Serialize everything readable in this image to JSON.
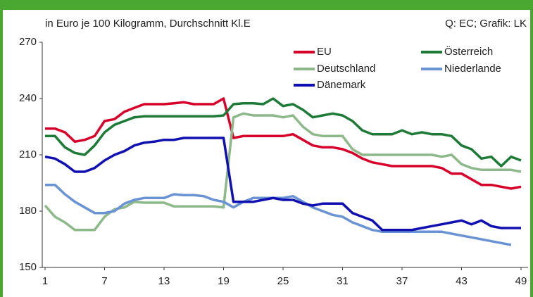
{
  "chart_data": {
    "type": "line",
    "subtitle": "in Euro je 100 Kilogramm, Durchschnitt Kl.E",
    "source": "Q: EC; Grafik: LK",
    "x": [
      1,
      2,
      3,
      4,
      5,
      6,
      7,
      8,
      9,
      10,
      11,
      12,
      13,
      14,
      15,
      16,
      17,
      18,
      19,
      20,
      21,
      22,
      23,
      24,
      25,
      26,
      27,
      28,
      29,
      30,
      31,
      32,
      33,
      34,
      35,
      36,
      37,
      38,
      39,
      40,
      41,
      42,
      43,
      44,
      45,
      46,
      47,
      48,
      49
    ],
    "xlim": [
      1,
      49
    ],
    "xticks": [
      1,
      7,
      13,
      19,
      25,
      31,
      37,
      43,
      49
    ],
    "ylim": [
      150,
      270
    ],
    "yticks": [
      150,
      180,
      210,
      240,
      270
    ],
    "grid": false,
    "legend": "top-right",
    "series": [
      {
        "name": "EU",
        "color": "#d7002a",
        "values": [
          224,
          224,
          222,
          217,
          218,
          220,
          228,
          229,
          233,
          235,
          237,
          237,
          237,
          237.5,
          238,
          237,
          237,
          237,
          240,
          219,
          220,
          220,
          220,
          220,
          220,
          221,
          218,
          215,
          214,
          214,
          213,
          211,
          208,
          206,
          205,
          204,
          204,
          204,
          204,
          204,
          203,
          200,
          200,
          197,
          194,
          194,
          193,
          192,
          193
        ]
      },
      {
        "name": "Österreich",
        "color": "#1e7a37",
        "values": [
          220,
          220,
          214,
          211,
          210,
          215,
          222,
          226,
          228,
          230,
          230.5,
          230.5,
          230.5,
          230.5,
          230.5,
          230.5,
          230.5,
          230.5,
          231,
          237,
          237.5,
          237.5,
          237,
          240,
          236,
          237,
          234,
          230,
          231,
          232,
          231,
          228,
          223,
          221,
          221,
          221,
          223,
          221,
          222,
          221,
          221,
          220,
          215,
          213,
          208,
          209,
          204,
          209,
          207
        ]
      },
      {
        "name": "Deutschland",
        "color": "#8db88a",
        "values": [
          183,
          177,
          174,
          170,
          170,
          170,
          177,
          181,
          182,
          185,
          184.5,
          184.5,
          184.5,
          182.5,
          182.5,
          182.5,
          182.5,
          182.5,
          182,
          230,
          232,
          231,
          231,
          231,
          230,
          231,
          225,
          221,
          220,
          220,
          220,
          213,
          210,
          210,
          210,
          210,
          210,
          210,
          210,
          210,
          209,
          210,
          205,
          203,
          202,
          202,
          202,
          202,
          201
        ]
      },
      {
        "name": "Niederlande",
        "color": "#6a93d4",
        "values": [
          194,
          194,
          189,
          185,
          182,
          179,
          179,
          180,
          184,
          186,
          187,
          187,
          187,
          189,
          188.5,
          188.5,
          188,
          186,
          185,
          182,
          185,
          187,
          187,
          187,
          187,
          188,
          185,
          182,
          180,
          178,
          177,
          174,
          172,
          170,
          169,
          169,
          169,
          169,
          169,
          169,
          169,
          168,
          167,
          166,
          165,
          164,
          163,
          162,
          null
        ]
      },
      {
        "name": "Dänemark",
        "color": "#1010b0",
        "values": [
          209,
          208,
          205,
          201,
          201,
          203,
          207,
          210,
          212,
          215,
          216.5,
          217,
          218,
          218,
          219,
          219,
          219,
          219,
          219,
          185,
          185,
          185,
          186,
          187,
          186,
          186,
          184,
          183,
          184,
          184,
          184,
          179,
          177,
          175,
          170,
          170,
          170,
          170,
          171,
          172,
          173,
          174,
          175,
          173,
          175,
          172,
          171,
          171,
          171
        ]
      }
    ]
  }
}
